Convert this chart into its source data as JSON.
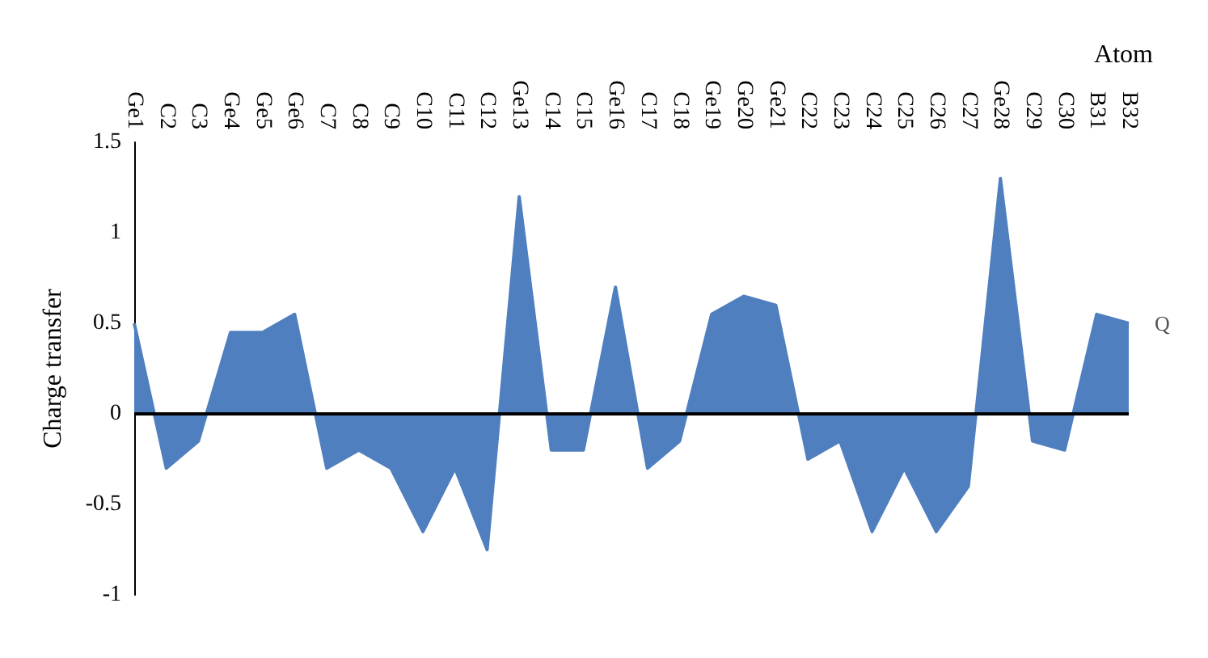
{
  "chart_data": {
    "type": "area",
    "xlabel": "Atom",
    "ylabel": "Charge transfer",
    "categories": [
      "Ge1",
      "C2",
      "C3",
      "Ge4",
      "Ge5",
      "Ge6",
      "C7",
      "C8",
      "C9",
      "C10",
      "C11",
      "C12",
      "Ge13",
      "C14",
      "C15",
      "Ge16",
      "C17",
      "C18",
      "Ge19",
      "Ge20",
      "Ge21",
      "C22",
      "C23",
      "C24",
      "C25",
      "C26",
      "C27",
      "Ge28",
      "C29",
      "C30",
      "B31",
      "B32"
    ],
    "series": [
      {
        "name": "Q",
        "color": "#4f7fbf",
        "values": [
          0.5,
          -0.3,
          -0.15,
          0.45,
          0.45,
          0.55,
          -0.3,
          -0.2,
          -0.3,
          -0.65,
          -0.3,
          -0.75,
          1.2,
          -0.2,
          -0.2,
          0.7,
          -0.3,
          -0.15,
          0.55,
          0.65,
          0.6,
          -0.25,
          -0.15,
          -0.65,
          -0.3,
          -0.65,
          -0.4,
          1.3,
          -0.15,
          -0.2,
          0.55,
          0.5
        ]
      }
    ],
    "ylim": [
      -1,
      1.5
    ],
    "yticks": [
      -1,
      -0.5,
      0,
      0.5,
      1,
      1.5
    ],
    "grid": false,
    "legend": false,
    "ref_lines": [
      {
        "axis": "y",
        "value": 0,
        "color": "#000000"
      }
    ]
  }
}
